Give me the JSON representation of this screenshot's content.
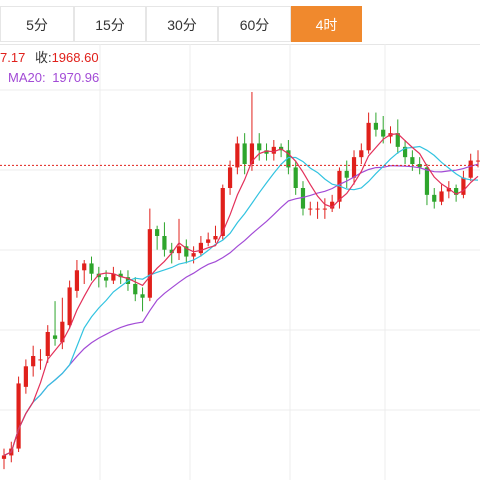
{
  "tabs": [
    {
      "label": "5分",
      "active": false
    },
    {
      "label": "15分",
      "active": false
    },
    {
      "label": "30分",
      "active": false
    },
    {
      "label": "60分",
      "active": false
    },
    {
      "label": "4时",
      "active": true
    }
  ],
  "accent_color": "#f0892d",
  "info": {
    "open_value_partial": "7.17",
    "close_label": "收:",
    "close_value": "1968.60",
    "ma20_label": "MA20:",
    "ma20_value": "1970.96"
  },
  "colors": {
    "up": "#e0201b",
    "down": "#2ea52c",
    "ma_fast": "#e3305a",
    "ma_mid": "#32c3e0",
    "ma_slow": "#a24bd6",
    "grid": "#ececec",
    "price_line": "#e0201b"
  },
  "chart_data": {
    "type": "candlestick",
    "visible_price_range": [
      1885,
      1990
    ],
    "current_price_line": 1968.6,
    "candles": [
      [
        1883,
        1884,
        1880,
        1886
      ],
      [
        1884,
        1886,
        1882,
        1888
      ],
      [
        1886,
        1905,
        1885,
        1907
      ],
      [
        1904,
        1910,
        1902,
        1912
      ],
      [
        1910,
        1913,
        1907,
        1916
      ],
      [
        1912,
        1912,
        1909,
        1915
      ],
      [
        1913,
        1920,
        1911,
        1922
      ],
      [
        1919,
        1918,
        1916,
        1929
      ],
      [
        1917,
        1923,
        1915,
        1930
      ],
      [
        1922,
        1933,
        1921,
        1935
      ],
      [
        1932,
        1938,
        1930,
        1941
      ],
      [
        1938,
        1940,
        1934,
        1941
      ],
      [
        1940,
        1937,
        1935,
        1942
      ],
      [
        1937,
        1936,
        1933,
        1939
      ],
      [
        1936,
        1935,
        1933,
        1938
      ],
      [
        1935,
        1937,
        1934,
        1939
      ],
      [
        1937,
        1936,
        1934,
        1938
      ],
      [
        1936,
        1934,
        1932,
        1938
      ],
      [
        1934,
        1931,
        1929,
        1936
      ],
      [
        1931,
        1930,
        1926,
        1933
      ],
      [
        1930,
        1950,
        1929,
        1956
      ],
      [
        1950,
        1948,
        1944,
        1951
      ],
      [
        1948,
        1944,
        1942,
        1952
      ],
      [
        1944,
        1943,
        1940,
        1946
      ],
      [
        1943,
        1945,
        1941,
        1953
      ],
      [
        1945,
        1942,
        1940,
        1947
      ],
      [
        1942,
        1943,
        1940,
        1945
      ],
      [
        1943,
        1946,
        1942,
        1948
      ],
      [
        1946,
        1947,
        1945,
        1949
      ],
      [
        1947,
        1948,
        1946,
        1951
      ],
      [
        1948,
        1962,
        1947,
        1963
      ],
      [
        1962,
        1968,
        1960,
        1970
      ],
      [
        1968,
        1975,
        1966,
        1977
      ],
      [
        1975,
        1969,
        1966,
        1978
      ],
      [
        1969,
        1975,
        1967,
        1990
      ],
      [
        1975,
        1973,
        1970,
        1978
      ],
      [
        1973,
        1972,
        1970,
        1975
      ],
      [
        1972,
        1974,
        1970,
        1976
      ],
      [
        1974,
        1973,
        1971,
        1975
      ],
      [
        1973,
        1968,
        1966,
        1976
      ],
      [
        1968,
        1962,
        1960,
        1970
      ],
      [
        1962,
        1956,
        1954,
        1964
      ],
      [
        1956,
        1956,
        1954,
        1958
      ],
      [
        1956,
        1956,
        1953,
        1958
      ],
      [
        1956,
        1956,
        1953,
        1959
      ],
      [
        1956,
        1958,
        1955,
        1960
      ],
      [
        1958,
        1967,
        1956,
        1968
      ],
      [
        1967,
        1965,
        1962,
        1970
      ],
      [
        1965,
        1971,
        1963,
        1973
      ],
      [
        1971,
        1973,
        1969,
        1975
      ],
      [
        1973,
        1981,
        1972,
        1984
      ],
      [
        1981,
        1979,
        1977,
        1984
      ],
      [
        1979,
        1977,
        1975,
        1983
      ],
      [
        1977,
        1978,
        1975,
        1980
      ],
      [
        1978,
        1974,
        1972,
        1982
      ],
      [
        1974,
        1971,
        1969,
        1976
      ],
      [
        1971,
        1969,
        1967,
        1973
      ],
      [
        1969,
        1968,
        1966,
        1971
      ],
      [
        1968,
        1960,
        1957,
        1969
      ],
      [
        1960,
        1958,
        1956,
        1962
      ],
      [
        1958,
        1961,
        1957,
        1963
      ],
      [
        1961,
        1962,
        1959,
        1964
      ],
      [
        1962,
        1960,
        1958,
        1963
      ],
      [
        1960,
        1965,
        1959,
        1967
      ],
      [
        1965,
        1970,
        1964,
        1972
      ],
      [
        1970,
        1970,
        1968,
        1973
      ]
    ]
  }
}
